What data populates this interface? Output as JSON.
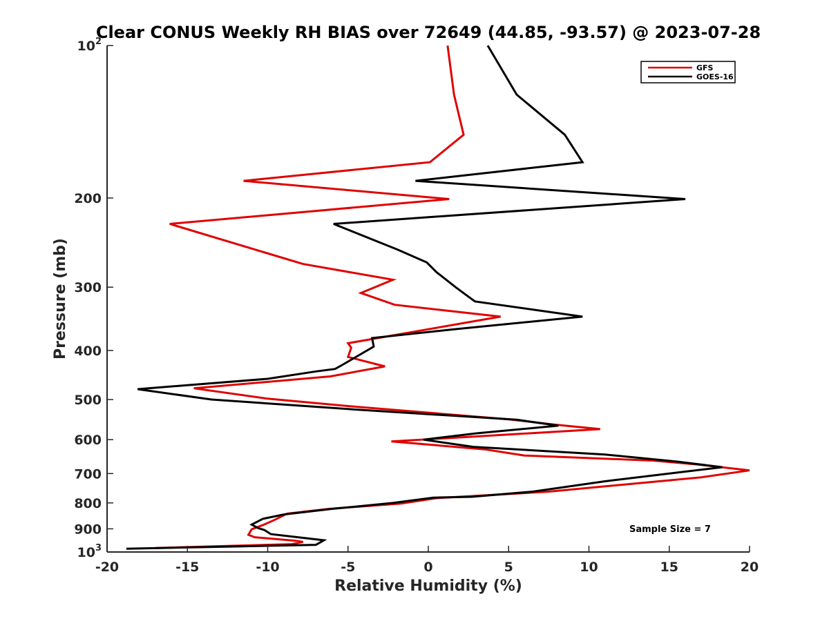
{
  "chart_data": {
    "type": "line",
    "title": "Clear CONUS Weekly RH BIAS over 72649 (44.85, -93.57) @ 2023-07-28",
    "xlabel": "Relative Humidity (%)",
    "ylabel": "Pressure (mb)",
    "xlim": [
      -20,
      20
    ],
    "ylim": [
      100,
      1000
    ],
    "y_scale": "log",
    "y_reversed": true,
    "grid": false,
    "legend_position": "top-right",
    "x_ticks": [
      "-20",
      "-15",
      "-10",
      "-5",
      "0",
      "5",
      "10",
      "15",
      "20"
    ],
    "y_ticks": [
      {
        "value": 100,
        "base": "10",
        "exp": "2"
      },
      {
        "value": 200,
        "label": "200"
      },
      {
        "value": 300,
        "label": "300"
      },
      {
        "value": 400,
        "label": "400"
      },
      {
        "value": 500,
        "label": "500"
      },
      {
        "value": 600,
        "label": "600"
      },
      {
        "value": 700,
        "label": "700"
      },
      {
        "value": 800,
        "label": "800"
      },
      {
        "value": 900,
        "label": "900"
      },
      {
        "value": 1000,
        "base": "10",
        "exp": "3"
      }
    ],
    "series": [
      {
        "name": "GFS",
        "color": "#e00000",
        "points": [
          [
            1.2,
            100
          ],
          [
            1.6,
            125
          ],
          [
            2.2,
            150
          ],
          [
            0.1,
            170
          ],
          [
            -11.5,
            185
          ],
          [
            1.3,
            201
          ],
          [
            -16.1,
            225
          ],
          [
            -7.8,
            270
          ],
          [
            -2.2,
            290
          ],
          [
            -4.2,
            308
          ],
          [
            -2.1,
            325
          ],
          [
            4.5,
            343
          ],
          [
            -5.0,
            387
          ],
          [
            -4.8,
            395
          ],
          [
            -5.0,
            412
          ],
          [
            -2.7,
            430
          ],
          [
            -6.1,
            450
          ],
          [
            -14.6,
            475
          ],
          [
            -10.0,
            498
          ],
          [
            -5.0,
            515
          ],
          [
            5.0,
            547
          ],
          [
            7.8,
            560
          ],
          [
            10.7,
            572
          ],
          [
            -2.3,
            605
          ],
          [
            3.5,
            627
          ],
          [
            6.0,
            645
          ],
          [
            14.0,
            660
          ],
          [
            16.8,
            672
          ],
          [
            20.0,
            690
          ],
          [
            17.0,
            712
          ],
          [
            7.5,
            760
          ],
          [
            0.5,
            783
          ],
          [
            -1.7,
            802
          ],
          [
            -6.2,
            822
          ],
          [
            -8.8,
            840
          ],
          [
            -9.5,
            862
          ],
          [
            -10.2,
            882
          ],
          [
            -11.0,
            902
          ],
          [
            -11.2,
            925
          ],
          [
            -10.8,
            935
          ],
          [
            -8.3,
            950
          ],
          [
            -7.8,
            955
          ],
          [
            -8.5,
            965
          ],
          [
            -17.0,
            982
          ]
        ]
      },
      {
        "name": "GOES-16",
        "color": "#000000",
        "points": [
          [
            3.7,
            100
          ],
          [
            5.5,
            125
          ],
          [
            8.5,
            150
          ],
          [
            9.6,
            170
          ],
          [
            -0.8,
            185
          ],
          [
            16.0,
            201
          ],
          [
            -5.9,
            225
          ],
          [
            -1.9,
            253
          ],
          [
            -0.1,
            268
          ],
          [
            0.5,
            280
          ],
          [
            1.7,
            300
          ],
          [
            2.9,
            320
          ],
          [
            9.6,
            343
          ],
          [
            1.7,
            363
          ],
          [
            -3.5,
            378
          ],
          [
            -3.4,
            393
          ],
          [
            -5.4,
            428
          ],
          [
            -5.8,
            435
          ],
          [
            -7.0,
            440
          ],
          [
            -10.0,
            455
          ],
          [
            -18.1,
            477
          ],
          [
            -13.5,
            500
          ],
          [
            -5.0,
            522
          ],
          [
            5.5,
            548
          ],
          [
            8.1,
            563
          ],
          [
            3.0,
            583
          ],
          [
            -0.3,
            600
          ],
          [
            2.8,
            620
          ],
          [
            11.0,
            642
          ],
          [
            15.5,
            663
          ],
          [
            18.3,
            680
          ],
          [
            15.5,
            697
          ],
          [
            11.0,
            725
          ],
          [
            6.5,
            760
          ],
          [
            2.7,
            778
          ],
          [
            0.3,
            781
          ],
          [
            -2.2,
            800
          ],
          [
            -6.0,
            822
          ],
          [
            -9.0,
            843
          ],
          [
            -10.3,
            860
          ],
          [
            -11.0,
            883
          ],
          [
            -10.6,
            897
          ],
          [
            -10.2,
            905
          ],
          [
            -9.8,
            922
          ],
          [
            -6.5,
            948
          ],
          [
            -7.0,
            968
          ],
          [
            -18.8,
            985
          ]
        ]
      }
    ],
    "annotations": [
      {
        "text": "Sample Size = 7",
        "position": "bottom-right"
      }
    ]
  }
}
